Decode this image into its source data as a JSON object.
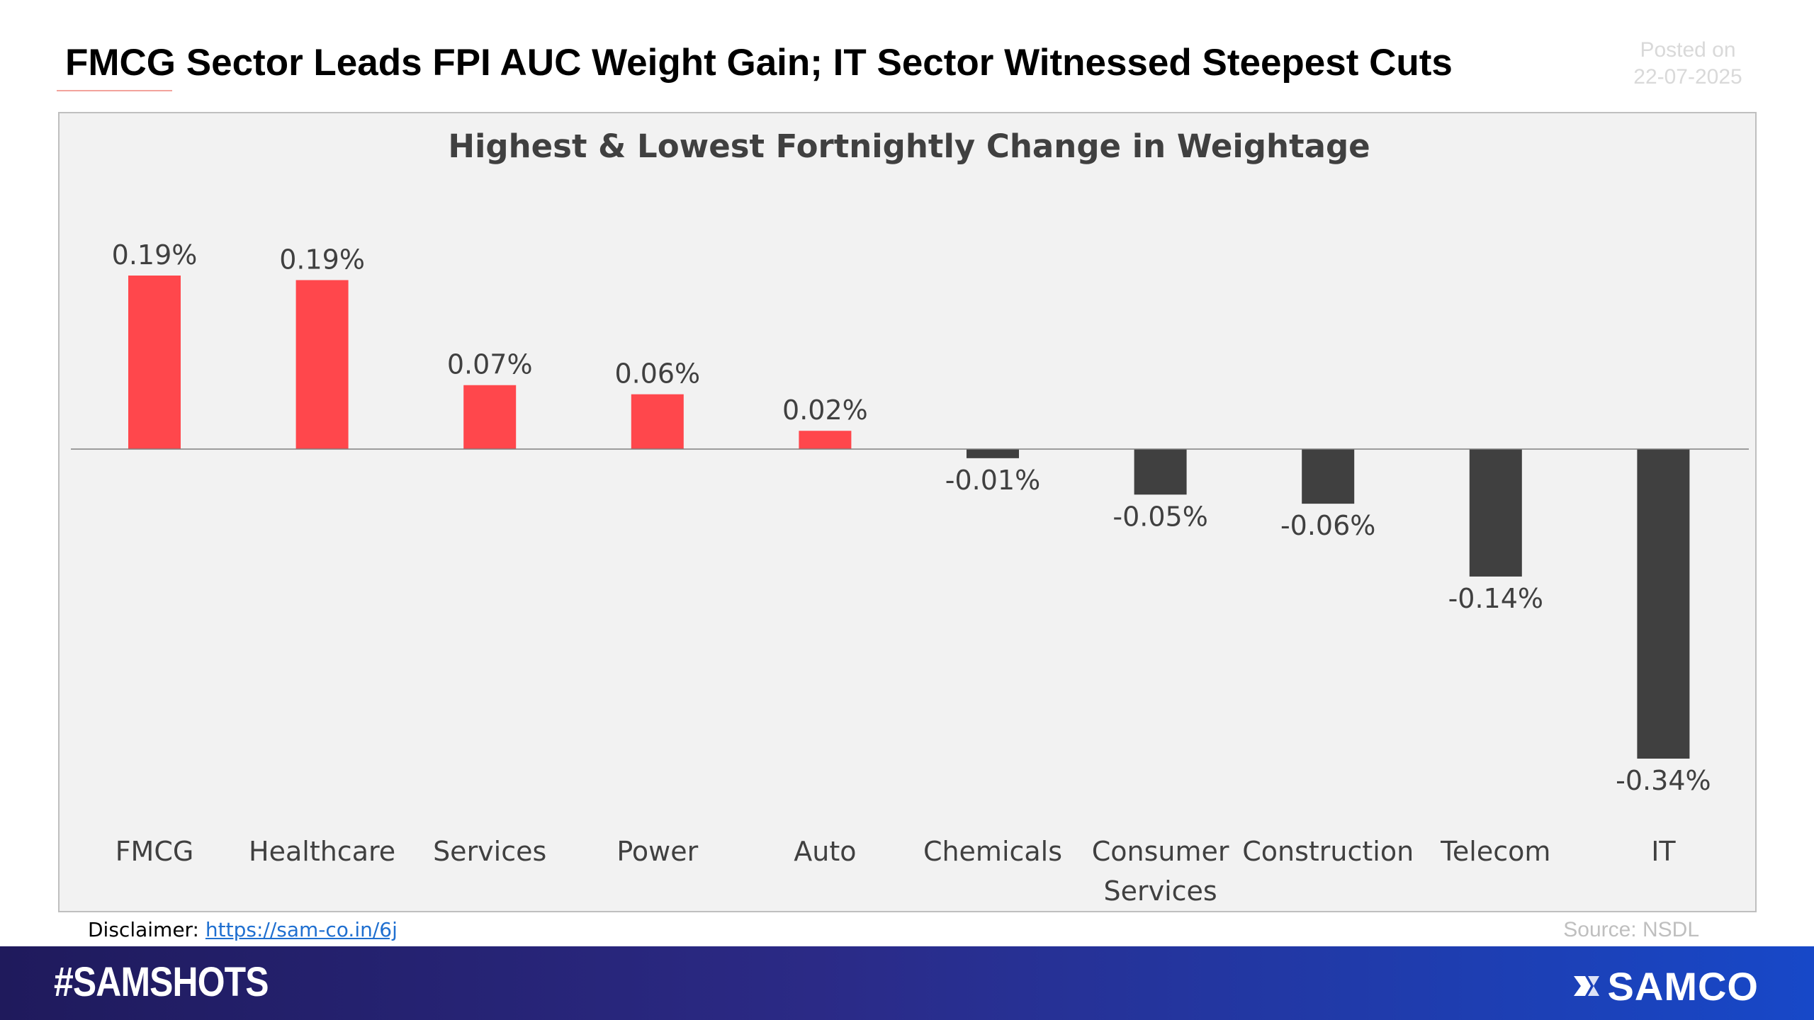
{
  "header": {
    "title": "FMCG Sector Leads FPI AUC Weight Gain; IT Sector Witnessed Steepest Cuts",
    "posted_label": "Posted on",
    "posted_date": "22-07-2025"
  },
  "chart_data": {
    "type": "bar",
    "title": "Highest & Lowest Fortnightly Change in Weightage",
    "categories": [
      "FMCG",
      "Healthcare",
      "Services",
      "Power",
      "Auto",
      "Chemicals",
      "Consumer Services",
      "Construction",
      "Telecom",
      "IT"
    ],
    "category_lines": [
      [
        "FMCG"
      ],
      [
        "Healthcare"
      ],
      [
        "Services"
      ],
      [
        "Power"
      ],
      [
        "Auto"
      ],
      [
        "Chemicals"
      ],
      [
        "Consumer",
        "Services"
      ],
      [
        "Construction"
      ],
      [
        "Telecom"
      ],
      [
        "IT"
      ]
    ],
    "values": [
      0.19,
      0.185,
      0.07,
      0.06,
      0.02,
      -0.01,
      -0.05,
      -0.06,
      -0.14,
      -0.34
    ],
    "data_labels": [
      "0.19%",
      "0.19%",
      "0.07%",
      "0.06%",
      "0.02%",
      "-0.01%",
      "-0.05%",
      "-0.06%",
      "-0.14%",
      "-0.34%"
    ],
    "unit": "%",
    "ylim": [
      -0.34,
      0.19
    ],
    "colors": {
      "positive": "#ff474c",
      "negative": "#404040"
    },
    "xlabel": "",
    "ylabel": ""
  },
  "footer": {
    "disclaimer_label": "Disclaimer: ",
    "disclaimer_link": "https://sam-co.in/6j",
    "source": "Source: NSDL",
    "hashtag": "#SAMSHOTS",
    "brand": "SAMCO"
  }
}
